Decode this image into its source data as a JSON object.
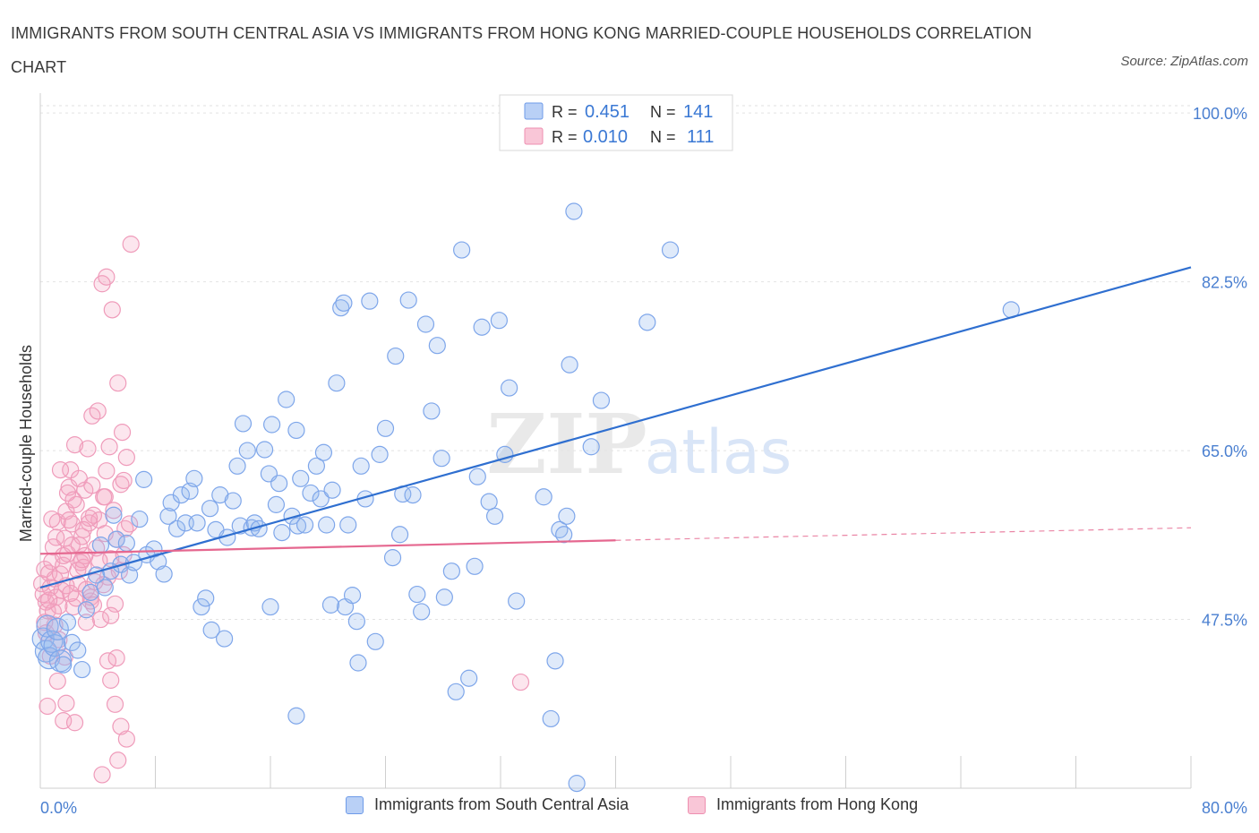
{
  "title": "IMMIGRANTS FROM SOUTH CENTRAL ASIA VS IMMIGRANTS FROM HONG KONG MARRIED-COUPLE HOUSEHOLDS CORRELATION CHART",
  "source": "Source: ZipAtlas.com",
  "watermark": {
    "zip": "ZIP",
    "atlas": "atlas"
  },
  "colors": {
    "blue": "#6e9be8",
    "blue_line": "#2f6fd0",
    "pink": "#ee8fb0",
    "pink_line": "#e5678f",
    "tick_label": "#4a7fd0"
  },
  "legend": {
    "rows": [
      {
        "r_label": "R =",
        "r_value": "0.451",
        "n_label": "N =",
        "n_value": "141"
      },
      {
        "r_label": "R =",
        "r_value": "0.010",
        "n_label": "N =",
        "n_value": "111"
      }
    ]
  },
  "bottom_legend": [
    "Immigrants from South Central Asia",
    "Immigrants from Hong Kong"
  ],
  "chart_data": {
    "type": "scatter",
    "title": "IMMIGRANTS FROM SOUTH CENTRAL ASIA VS IMMIGRANTS FROM HONG KONG MARRIED-COUPLE HOUSEHOLDS CORRELATION CHART",
    "xlabel": "",
    "ylabel": "Married-couple Households",
    "xlim": [
      0,
      80
    ],
    "ylim": [
      30,
      101.5
    ],
    "x_tick_labels": [
      "0.0%",
      "80.0%"
    ],
    "y_ticks": [
      47.5,
      65.0,
      82.5,
      100.0
    ],
    "y_tick_labels": [
      "47.5%",
      "65.0%",
      "82.5%",
      "100.0%"
    ],
    "grid": true,
    "legend_position": "top-center",
    "series": [
      {
        "name": "Immigrants from South Central Asia",
        "color": "#6e9be8",
        "trend": {
          "x": [
            0,
            80
          ],
          "y": [
            50.8,
            84.0
          ],
          "style": "solid"
        },
        "points": [
          [
            0.2,
            45.5
          ],
          [
            0.4,
            44.2
          ],
          [
            0.5,
            46.8
          ],
          [
            0.6,
            43.5
          ],
          [
            0.8,
            45.2
          ],
          [
            1.0,
            44.8
          ],
          [
            1.2,
            46.5
          ],
          [
            1.4,
            43.2
          ],
          [
            1.6,
            42.8
          ],
          [
            1.9,
            47.2
          ],
          [
            2.2,
            45.1
          ],
          [
            2.6,
            44.3
          ],
          [
            2.9,
            42.3
          ],
          [
            3.2,
            48.5
          ],
          [
            3.5,
            50.3
          ],
          [
            3.9,
            52.1
          ],
          [
            4.2,
            55.2
          ],
          [
            4.5,
            50.8
          ],
          [
            4.9,
            52.5
          ],
          [
            5.1,
            58.3
          ],
          [
            5.3,
            55.8
          ],
          [
            5.6,
            53.2
          ],
          [
            6.0,
            55.4
          ],
          [
            6.2,
            52.1
          ],
          [
            6.5,
            53.4
          ],
          [
            6.9,
            57.9
          ],
          [
            7.2,
            62.0
          ],
          [
            7.4,
            54.2
          ],
          [
            7.9,
            54.8
          ],
          [
            8.2,
            53.5
          ],
          [
            8.6,
            52.2
          ],
          [
            8.9,
            58.2
          ],
          [
            9.1,
            59.6
          ],
          [
            9.5,
            56.9
          ],
          [
            9.8,
            60.4
          ],
          [
            10.1,
            57.5
          ],
          [
            10.4,
            60.8
          ],
          [
            10.7,
            62.1
          ],
          [
            10.9,
            57.5
          ],
          [
            11.2,
            48.8
          ],
          [
            11.5,
            49.7
          ],
          [
            11.8,
            59.0
          ],
          [
            11.9,
            46.4
          ],
          [
            12.2,
            56.8
          ],
          [
            12.5,
            60.4
          ],
          [
            12.8,
            45.5
          ],
          [
            13.0,
            56.0
          ],
          [
            13.4,
            59.8
          ],
          [
            13.7,
            63.4
          ],
          [
            13.9,
            57.2
          ],
          [
            14.1,
            67.8
          ],
          [
            14.4,
            65.0
          ],
          [
            14.7,
            57.0
          ],
          [
            14.9,
            57.5
          ],
          [
            15.2,
            56.9
          ],
          [
            15.6,
            65.1
          ],
          [
            15.9,
            62.6
          ],
          [
            16.1,
            67.7
          ],
          [
            16.4,
            59.4
          ],
          [
            16.6,
            61.6
          ],
          [
            16.8,
            56.5
          ],
          [
            16.0,
            48.8
          ],
          [
            17.1,
            70.3
          ],
          [
            17.5,
            58.2
          ],
          [
            17.8,
            67.1
          ],
          [
            17.9,
            57.2
          ],
          [
            18.1,
            62.1
          ],
          [
            18.4,
            57.3
          ],
          [
            18.8,
            60.6
          ],
          [
            19.2,
            63.4
          ],
          [
            19.5,
            60.0
          ],
          [
            19.7,
            64.8
          ],
          [
            19.9,
            57.3
          ],
          [
            20.3,
            60.9
          ],
          [
            20.6,
            72.0
          ],
          [
            20.9,
            79.8
          ],
          [
            21.1,
            80.3
          ],
          [
            21.4,
            57.3
          ],
          [
            21.2,
            48.8
          ],
          [
            21.7,
            50.0
          ],
          [
            20.2,
            49.0
          ],
          [
            22.0,
            47.3
          ],
          [
            22.3,
            63.4
          ],
          [
            22.6,
            60.0
          ],
          [
            22.9,
            80.5
          ],
          [
            23.3,
            45.2
          ],
          [
            22.1,
            43.0
          ],
          [
            23.6,
            64.6
          ],
          [
            24.0,
            67.3
          ],
          [
            24.5,
            53.9
          ],
          [
            24.7,
            74.8
          ],
          [
            25.0,
            56.3
          ],
          [
            25.2,
            60.5
          ],
          [
            25.6,
            80.6
          ],
          [
            25.9,
            60.4
          ],
          [
            26.2,
            50.1
          ],
          [
            26.5,
            48.3
          ],
          [
            26.8,
            78.1
          ],
          [
            27.2,
            69.1
          ],
          [
            27.6,
            75.9
          ],
          [
            27.9,
            64.2
          ],
          [
            28.1,
            49.8
          ],
          [
            28.6,
            52.5
          ],
          [
            28.9,
            40.0
          ],
          [
            29.3,
            85.8
          ],
          [
            29.8,
            41.4
          ],
          [
            30.2,
            53.0
          ],
          [
            30.4,
            62.3
          ],
          [
            30.7,
            77.8
          ],
          [
            31.2,
            59.7
          ],
          [
            31.6,
            58.2
          ],
          [
            31.9,
            78.5
          ],
          [
            32.3,
            64.6
          ],
          [
            32.6,
            71.5
          ],
          [
            33.1,
            49.4
          ],
          [
            35.0,
            60.2
          ],
          [
            35.5,
            37.2
          ],
          [
            35.8,
            43.2
          ],
          [
            36.1,
            56.8
          ],
          [
            36.4,
            56.3
          ],
          [
            36.6,
            58.2
          ],
          [
            36.8,
            73.9
          ],
          [
            37.1,
            89.8
          ],
          [
            37.3,
            30.5
          ],
          [
            38.3,
            65.4
          ],
          [
            39.0,
            70.2
          ],
          [
            42.2,
            78.3
          ],
          [
            43.8,
            85.8
          ],
          [
            67.5,
            79.6
          ],
          [
            17.8,
            37.5
          ]
        ]
      },
      {
        "name": "Immigrants from Hong Kong",
        "color": "#ee8fb0",
        "trend": {
          "x": [
            0,
            40
          ],
          "y": [
            54.3,
            55.7
          ],
          "style": "solid",
          "dashed_extension_to": [
            80,
            57.0
          ]
        },
        "points": [
          [
            0.1,
            51.2
          ],
          [
            0.2,
            50.1
          ],
          [
            0.3,
            52.7
          ],
          [
            0.4,
            49.3
          ],
          [
            0.5,
            48.4
          ],
          [
            0.6,
            52.3
          ],
          [
            0.7,
            50.8
          ],
          [
            0.8,
            53.5
          ],
          [
            0.9,
            55.0
          ],
          [
            1.0,
            51.7
          ],
          [
            1.1,
            49.8
          ],
          [
            1.2,
            57.6
          ],
          [
            1.3,
            48.9
          ],
          [
            1.4,
            52.2
          ],
          [
            1.5,
            50.5
          ],
          [
            1.6,
            53.1
          ],
          [
            1.7,
            55.9
          ],
          [
            1.8,
            58.7
          ],
          [
            1.9,
            54.3
          ],
          [
            2.0,
            61.2
          ],
          [
            2.1,
            63.0
          ],
          [
            2.2,
            57.4
          ],
          [
            2.3,
            48.8
          ],
          [
            2.4,
            65.6
          ],
          [
            2.5,
            59.4
          ],
          [
            2.6,
            51.2
          ],
          [
            2.7,
            55.2
          ],
          [
            2.8,
            53.4
          ],
          [
            2.9,
            56.1
          ],
          [
            3.0,
            52.9
          ],
          [
            3.1,
            60.9
          ],
          [
            3.2,
            50.6
          ],
          [
            3.3,
            65.2
          ],
          [
            3.4,
            57.5
          ],
          [
            3.5,
            49.4
          ],
          [
            3.6,
            68.6
          ],
          [
            3.7,
            58.3
          ],
          [
            3.8,
            51.4
          ],
          [
            3.9,
            54.9
          ],
          [
            4.0,
            69.1
          ],
          [
            4.1,
            57.8
          ],
          [
            4.2,
            47.5
          ],
          [
            4.3,
            82.3
          ],
          [
            4.4,
            60.2
          ],
          [
            4.5,
            56.4
          ],
          [
            4.6,
            62.9
          ],
          [
            4.7,
            51.9
          ],
          [
            4.8,
            65.4
          ],
          [
            4.9,
            53.8
          ],
          [
            5.0,
            79.6
          ],
          [
            5.1,
            58.8
          ],
          [
            5.2,
            49.1
          ],
          [
            5.3,
            55.8
          ],
          [
            5.4,
            72.0
          ],
          [
            5.5,
            52.5
          ],
          [
            5.6,
            61.5
          ],
          [
            5.7,
            66.9
          ],
          [
            5.8,
            54.2
          ],
          [
            5.9,
            56.9
          ],
          [
            6.0,
            64.3
          ],
          [
            4.6,
            83.0
          ],
          [
            6.3,
            86.4
          ],
          [
            4.9,
            41.2
          ],
          [
            5.2,
            38.7
          ],
          [
            5.6,
            36.4
          ],
          [
            6.0,
            35.1
          ],
          [
            5.4,
            32.9
          ],
          [
            4.3,
            31.4
          ],
          [
            4.7,
            43.2
          ],
          [
            5.3,
            43.5
          ],
          [
            0.5,
            38.5
          ],
          [
            1.2,
            41.1
          ],
          [
            1.6,
            37.0
          ],
          [
            1.8,
            38.8
          ],
          [
            2.4,
            36.8
          ],
          [
            3.2,
            47.2
          ],
          [
            1.1,
            56.0
          ],
          [
            0.8,
            57.9
          ],
          [
            1.4,
            63.0
          ],
          [
            1.9,
            60.6
          ],
          [
            2.7,
            62.1
          ],
          [
            3.4,
            58.0
          ],
          [
            3.1,
            54.1
          ],
          [
            2.6,
            52.6
          ],
          [
            2.2,
            55.2
          ],
          [
            1.6,
            54.1
          ],
          [
            0.9,
            48.3
          ],
          [
            0.6,
            49.5
          ],
          [
            1.8,
            51.0
          ],
          [
            2.5,
            49.7
          ],
          [
            3.0,
            56.8
          ],
          [
            3.6,
            61.4
          ],
          [
            4.1,
            53.6
          ],
          [
            4.4,
            51.1
          ],
          [
            4.9,
            47.9
          ],
          [
            1.3,
            45.4
          ],
          [
            0.4,
            46.1
          ],
          [
            0.7,
            43.7
          ],
          [
            2.0,
            57.8
          ],
          [
            2.3,
            59.9
          ],
          [
            2.9,
            53.7
          ],
          [
            3.5,
            49.8
          ],
          [
            1.0,
            46.9
          ],
          [
            1.7,
            43.6
          ],
          [
            0.3,
            47.2
          ],
          [
            4.5,
            60.2
          ],
          [
            5.8,
            61.9
          ],
          [
            6.2,
            57.4
          ],
          [
            33.4,
            41.0
          ],
          [
            2.1,
            50.2
          ],
          [
            3.7,
            49.0
          ]
        ]
      }
    ]
  }
}
